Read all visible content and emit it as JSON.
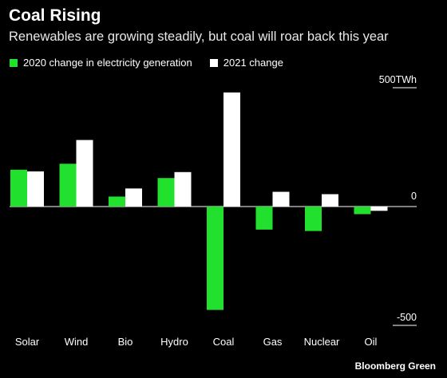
{
  "title": "Coal Rising",
  "subtitle": "Renewables are growing steadily, but coal will roar back this year",
  "legend": [
    {
      "label": "2020 change in electricity generation",
      "color": "#22e02e"
    },
    {
      "label": "2021 change",
      "color": "#ffffff"
    }
  ],
  "footer": "Bloomberg Green",
  "chart_data": {
    "type": "bar",
    "categories": [
      "Solar",
      "Wind",
      "Bio",
      "Hydro",
      "Coal",
      "Gas",
      "Nuclear",
      "Oil"
    ],
    "series": [
      {
        "name": "2020 change in electricity generation",
        "color": "#22e02e",
        "values": [
          155,
          180,
          42,
          120,
          -435,
          -97,
          -103,
          -32
        ]
      },
      {
        "name": "2021 change",
        "color": "#ffffff",
        "values": [
          148,
          280,
          76,
          145,
          480,
          62,
          52,
          -18
        ]
      }
    ],
    "ylim": [
      -500,
      500
    ],
    "ytick_labels": [
      {
        "value": 500,
        "label": "500TWh"
      },
      {
        "value": 0,
        "label": "0"
      },
      {
        "value": -500,
        "label": "-500"
      }
    ]
  }
}
